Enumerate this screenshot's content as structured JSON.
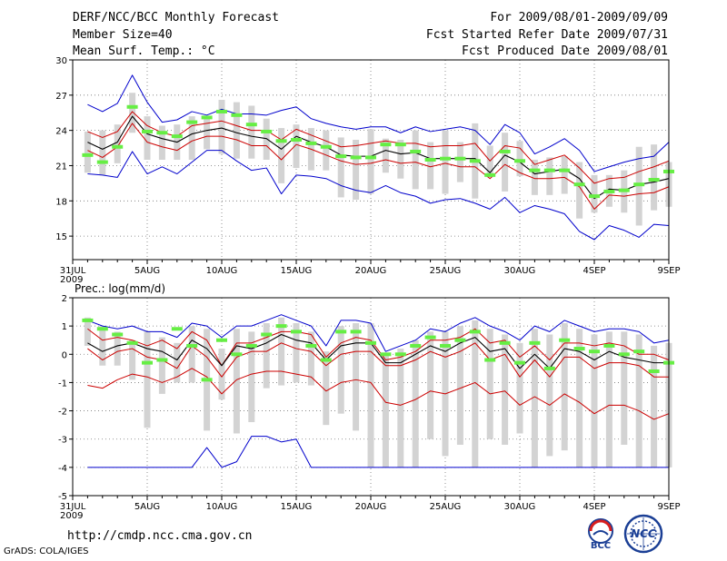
{
  "header": {
    "title": "DERF/NCC/BCC Monthly Forecast",
    "member_size": "Member Size=40",
    "variable": "Mean Surf. Temp.: °C",
    "forecast_period": "For 2009/08/01-2009/09/09",
    "start_date": "Fcst Started Refer Date 2009/07/31",
    "produced_date": "Fcst Produced Date 2009/08/01"
  },
  "footer": {
    "url": "http://cmdp.ncc.cma.gov.cn",
    "credit": "GrADS: COLA/IGES",
    "logo_bcc_text": "BCC",
    "logo_ncc_text": "NCC"
  },
  "colors": {
    "envelope": "#0000cc",
    "spread": "#cc0000",
    "mean": "#000000",
    "box": "#d3d3d3",
    "observed": "#66ee44"
  },
  "chart_data": [
    {
      "type": "box",
      "title": "Mean Surf. Temp.: °C",
      "ylim": [
        13,
        30
      ],
      "yticks": [
        15,
        18,
        21,
        24,
        27,
        30
      ],
      "x_start": "31JUL",
      "x_year": "2009",
      "xticks": [
        {
          "day": 0,
          "label": "31JUL"
        },
        {
          "day": 5,
          "label": "5AUG"
        },
        {
          "day": 10,
          "label": "10AUG"
        },
        {
          "day": 15,
          "label": "15AUG"
        },
        {
          "day": 20,
          "label": "20AUG"
        },
        {
          "day": 25,
          "label": "25AUG"
        },
        {
          "day": 30,
          "label": "30AUG"
        },
        {
          "day": 35,
          "label": "4SEP"
        },
        {
          "day": 40,
          "label": "9SEP"
        }
      ],
      "days": [
        1,
        2,
        3,
        4,
        5,
        6,
        7,
        8,
        9,
        10,
        11,
        12,
        13,
        14,
        15,
        16,
        17,
        18,
        19,
        20,
        21,
        22,
        23,
        24,
        25,
        26,
        27,
        28,
        29,
        30,
        31,
        32,
        33,
        34,
        35,
        36,
        37,
        38,
        39,
        40
      ],
      "max": [
        26.2,
        25.6,
        26.3,
        28.7,
        26.4,
        24.7,
        24.9,
        25.6,
        25.3,
        25.8,
        25.4,
        25.4,
        25.3,
        25.7,
        26.0,
        25.0,
        24.6,
        24.3,
        24.1,
        24.3,
        24.3,
        23.8,
        24.3,
        23.9,
        24.1,
        24.3,
        24.0,
        22.8,
        24.5,
        23.8,
        22.0,
        22.6,
        23.3,
        22.3,
        20.5,
        20.9,
        21.3,
        21.6,
        21.8,
        23.0
      ],
      "p_hi": [
        23.9,
        23.4,
        23.9,
        25.6,
        24.4,
        23.8,
        23.5,
        24.4,
        24.6,
        24.8,
        24.4,
        24.0,
        24.0,
        23.2,
        24.1,
        23.6,
        23.1,
        22.6,
        22.7,
        22.9,
        23.1,
        22.9,
        22.9,
        22.6,
        22.7,
        22.7,
        22.9,
        21.4,
        22.7,
        22.5,
        21.1,
        21.5,
        21.9,
        20.8,
        19.5,
        19.9,
        20.0,
        20.5,
        20.9,
        21.4
      ],
      "mean": [
        23.0,
        22.4,
        23.0,
        25.2,
        23.7,
        23.3,
        23.0,
        23.7,
        24.0,
        24.2,
        23.8,
        23.5,
        23.3,
        22.4,
        23.5,
        23.0,
        22.6,
        21.9,
        21.8,
        21.8,
        22.3,
        22.0,
        22.1,
        21.6,
        21.6,
        21.6,
        21.6,
        20.4,
        21.9,
        21.3,
        20.3,
        20.5,
        20.7,
        19.9,
        18.2,
        19.0,
        18.9,
        19.4,
        19.6,
        19.9
      ],
      "p_lo": [
        22.3,
        21.7,
        22.6,
        24.6,
        23.0,
        22.6,
        22.3,
        23.1,
        23.5,
        23.5,
        23.2,
        22.7,
        22.7,
        21.5,
        22.8,
        22.4,
        21.9,
        21.4,
        21.1,
        21.2,
        21.5,
        21.2,
        21.3,
        20.9,
        21.2,
        20.9,
        20.9,
        19.9,
        21.1,
        20.4,
        19.9,
        19.9,
        20.0,
        19.2,
        17.3,
        18.5,
        18.4,
        18.6,
        18.7,
        19.2
      ],
      "min": [
        20.3,
        20.2,
        20.0,
        22.2,
        20.3,
        20.9,
        20.3,
        21.3,
        22.3,
        22.3,
        21.4,
        20.6,
        20.8,
        18.6,
        20.2,
        20.1,
        19.9,
        19.3,
        18.9,
        18.7,
        19.3,
        18.7,
        18.4,
        17.8,
        18.1,
        18.2,
        17.8,
        17.3,
        18.3,
        17.0,
        17.6,
        17.3,
        16.9,
        15.4,
        14.7,
        15.9,
        15.5,
        14.9,
        16.0,
        15.9
      ],
      "box_lo": [
        20.4,
        20.2,
        21.2,
        23.8,
        21.5,
        21.5,
        21.5,
        21.5,
        22.4,
        22.0,
        21.6,
        21.6,
        21.5,
        19.5,
        20.8,
        20.6,
        20.6,
        18.3,
        18.1,
        18.6,
        20.4,
        19.9,
        19.0,
        19.0,
        18.6,
        19.6,
        18.2,
        20.0,
        18.8,
        20.1,
        18.5,
        18.5,
        18.6,
        16.5,
        17.0,
        17.5,
        17.0,
        15.9,
        17.2,
        17.5
      ],
      "box_hi": [
        23.9,
        24.0,
        24.5,
        27.2,
        25.2,
        24.4,
        24.5,
        25.2,
        25.0,
        26.6,
        26.4,
        26.1,
        25.0,
        24.2,
        24.5,
        24.2,
        24.0,
        23.4,
        23.2,
        24.1,
        23.3,
        23.2,
        24.0,
        23.0,
        24.0,
        23.0,
        24.6,
        22.7,
        23.8,
        23.1,
        21.5,
        21.7,
        21.8,
        21.3,
        20.2,
        20.2,
        20.6,
        22.6,
        22.8,
        21.3
      ],
      "observed": [
        21.9,
        21.3,
        22.6,
        26.0,
        23.9,
        23.8,
        23.5,
        24.7,
        25.1,
        25.6,
        25.3,
        24.5,
        23.9,
        23.1,
        23.2,
        22.9,
        22.6,
        21.8,
        21.7,
        21.7,
        22.8,
        22.8,
        22.2,
        21.5,
        21.6,
        21.6,
        21.4,
        20.2,
        22.2,
        21.4,
        20.6,
        20.6,
        20.6,
        19.4,
        18.4,
        18.8,
        18.9,
        19.4,
        19.8,
        20.5
      ]
    },
    {
      "type": "box",
      "title": "Prec.: log(mm/d)",
      "ylim": [
        -5,
        2
      ],
      "yticks": [
        -5,
        -4,
        -3,
        -2,
        -1,
        0,
        1,
        2
      ],
      "x_start": "31JUL",
      "x_year": "2009",
      "xticks": [
        {
          "day": 0,
          "label": "31JUL"
        },
        {
          "day": 5,
          "label": "5AUG"
        },
        {
          "day": 10,
          "label": "10AUG"
        },
        {
          "day": 15,
          "label": "15AUG"
        },
        {
          "day": 20,
          "label": "20AUG"
        },
        {
          "day": 25,
          "label": "25AUG"
        },
        {
          "day": 30,
          "label": "30AUG"
        },
        {
          "day": 35,
          "label": "4SEP"
        },
        {
          "day": 40,
          "label": "9SEP"
        }
      ],
      "days": [
        1,
        2,
        3,
        4,
        5,
        6,
        7,
        8,
        9,
        10,
        11,
        12,
        13,
        14,
        15,
        16,
        17,
        18,
        19,
        20,
        21,
        22,
        23,
        24,
        25,
        26,
        27,
        28,
        29,
        30,
        31,
        32,
        33,
        34,
        35,
        36,
        37,
        38,
        39,
        40
      ],
      "max": [
        1.2,
        1.0,
        0.9,
        1.0,
        0.8,
        0.8,
        0.6,
        1.1,
        1.0,
        0.6,
        1.0,
        1.0,
        1.2,
        1.4,
        1.2,
        1.0,
        0.3,
        1.2,
        1.2,
        1.1,
        0.1,
        0.3,
        0.5,
        0.9,
        0.8,
        1.1,
        1.3,
        1.0,
        0.8,
        0.5,
        1.0,
        0.8,
        1.2,
        1.0,
        0.8,
        0.9,
        0.9,
        0.8,
        0.4,
        0.5
      ],
      "p_hi": [
        0.9,
        0.5,
        0.6,
        0.5,
        0.3,
        0.5,
        0.2,
        0.8,
        0.5,
        -0.4,
        0.4,
        0.4,
        0.6,
        0.8,
        0.8,
        0.7,
        -0.1,
        0.4,
        0.6,
        0.5,
        -0.2,
        -0.1,
        0.1,
        0.5,
        0.5,
        0.6,
        0.9,
        0.4,
        0.5,
        -0.1,
        0.3,
        -0.2,
        0.4,
        0.4,
        0.3,
        0.4,
        0.3,
        0.0,
        0.0,
        -0.2
      ],
      "mean": [
        0.4,
        0.1,
        0.3,
        0.4,
        0.2,
        0.1,
        -0.2,
        0.5,
        0.2,
        -0.4,
        0.3,
        0.2,
        0.4,
        0.7,
        0.5,
        0.4,
        -0.2,
        0.3,
        0.4,
        0.4,
        -0.3,
        -0.3,
        0.0,
        0.3,
        0.1,
        0.4,
        0.6,
        0.1,
        0.2,
        -0.5,
        0.0,
        -0.5,
        0.2,
        0.1,
        -0.2,
        0.1,
        -0.1,
        -0.2,
        -0.3,
        -0.3
      ],
      "p_lo": [
        0.2,
        -0.2,
        0.1,
        0.2,
        -0.1,
        -0.2,
        -0.5,
        0.3,
        -0.1,
        -0.8,
        -0.1,
        0.1,
        0.1,
        0.4,
        0.2,
        0.1,
        -0.4,
        0.0,
        0.1,
        0.1,
        -0.4,
        -0.4,
        -0.2,
        0.1,
        -0.1,
        0.1,
        0.4,
        -0.2,
        0.0,
        -0.8,
        -0.2,
        -0.8,
        -0.1,
        -0.1,
        -0.5,
        -0.3,
        -0.3,
        -0.4,
        -0.8,
        -0.8
      ],
      "min": [
        -4,
        -4,
        -4,
        -4,
        -4,
        -4,
        -4,
        -4,
        -3.3,
        -4,
        -3.8,
        -2.9,
        -2.9,
        -3.1,
        -3.0,
        -4,
        -4,
        -4,
        -4,
        -4,
        -4,
        -4,
        -4,
        -4,
        -4,
        -4,
        -4,
        -4,
        -4,
        -4,
        -4,
        -4,
        -4,
        -4,
        -4,
        -4,
        -4,
        -4,
        -4,
        -4
      ],
      "spread_lo": [
        -1.1,
        -1.2,
        -0.9,
        -0.7,
        -0.8,
        -1.0,
        -0.8,
        -0.5,
        -0.8,
        -1.4,
        -0.9,
        -0.7,
        -0.6,
        -0.6,
        -0.7,
        -0.8,
        -1.3,
        -1.0,
        -0.9,
        -1.0,
        -1.7,
        -1.8,
        -1.6,
        -1.3,
        -1.4,
        -1.2,
        -1.0,
        -1.4,
        -1.3,
        -1.8,
        -1.5,
        -1.8,
        -1.4,
        -1.7,
        -2.1,
        -1.8,
        -1.8,
        -2.0,
        -2.3,
        -2.1
      ],
      "box_lo": [
        0.3,
        -0.4,
        -0.4,
        -0.9,
        -2.6,
        -1.4,
        -1.0,
        -1.0,
        -2.7,
        -1.6,
        -2.8,
        -2.4,
        -1.2,
        -1.1,
        -1.0,
        -1.1,
        -2.5,
        -2.1,
        -2.7,
        -4.0,
        -4.0,
        -4.0,
        -4.0,
        -3.0,
        -3.6,
        -3.2,
        -4.0,
        -3.0,
        -3.2,
        -2.8,
        -4.0,
        -3.6,
        -3.4,
        -4.0,
        -4.0,
        -4.0,
        -3.2,
        -4.0,
        -4.0,
        -4.0
      ],
      "box_hi": [
        1.3,
        1.0,
        0.8,
        0.5,
        0.8,
        0.6,
        0.4,
        1.0,
        0.9,
        0.2,
        0.9,
        0.8,
        1.1,
        1.3,
        1.1,
        0.8,
        0.1,
        1.0,
        1.1,
        1.1,
        0.0,
        0.2,
        0.5,
        0.8,
        0.8,
        1.0,
        1.2,
        0.9,
        0.7,
        0.4,
        0.9,
        0.7,
        1.1,
        0.9,
        0.7,
        0.8,
        0.8,
        0.7,
        0.3,
        0.4
      ],
      "observed": [
        1.2,
        0.9,
        0.7,
        0.4,
        -0.3,
        -0.2,
        0.9,
        0.3,
        -0.9,
        0.5,
        0.0,
        0.3,
        0.7,
        1.0,
        0.8,
        0.3,
        -0.2,
        0.8,
        0.8,
        0.4,
        0.0,
        0.0,
        0.3,
        0.6,
        0.3,
        0.5,
        0.8,
        -0.2,
        0.4,
        -0.3,
        0.4,
        -0.5,
        0.5,
        0.2,
        0.1,
        0.3,
        0.0,
        0.1,
        -0.6,
        -0.3
      ]
    }
  ]
}
